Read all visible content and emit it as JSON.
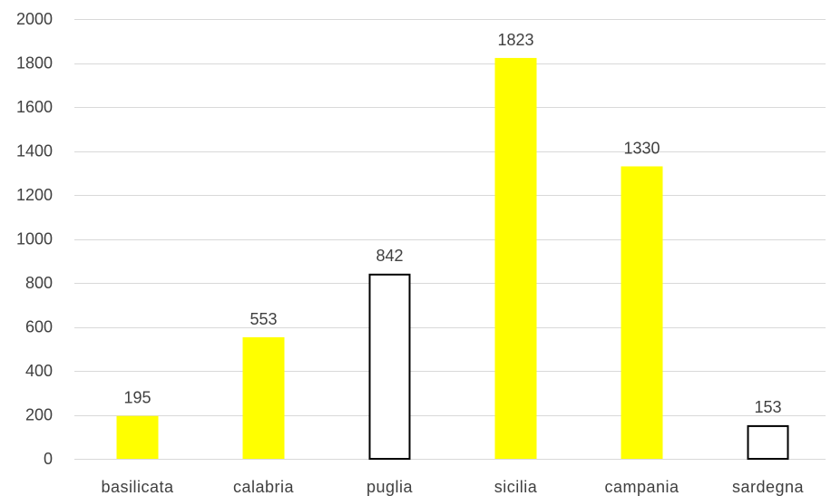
{
  "chart_data": {
    "type": "bar",
    "title": "",
    "xlabel": "",
    "ylabel": "",
    "categories": [
      "basilicata",
      "calabria",
      "puglia",
      "sicilia",
      "campania",
      "sardegna"
    ],
    "values": [
      195,
      553,
      842,
      1823,
      1330,
      153
    ],
    "data_labels": [
      "195",
      "553",
      "842",
      "1823",
      "1330",
      "153"
    ],
    "bar_styles": [
      "filled",
      "filled",
      "outline",
      "filled",
      "filled",
      "outline"
    ],
    "ylim": [
      0,
      2000
    ],
    "yticks": [
      0,
      200,
      400,
      600,
      800,
      1000,
      1200,
      1400,
      1600,
      1800,
      2000
    ],
    "ytick_labels": [
      "0",
      "200",
      "400",
      "600",
      "800",
      "1000",
      "1200",
      "1400",
      "1600",
      "1800",
      "2000"
    ],
    "grid": true,
    "legend": "none",
    "colors": {
      "bar_fill": "#FFFF00",
      "bar_outline": "#000000",
      "outline_fill": "#FFFFFF",
      "grid": "#D9D9D9",
      "text": "#404040"
    }
  }
}
